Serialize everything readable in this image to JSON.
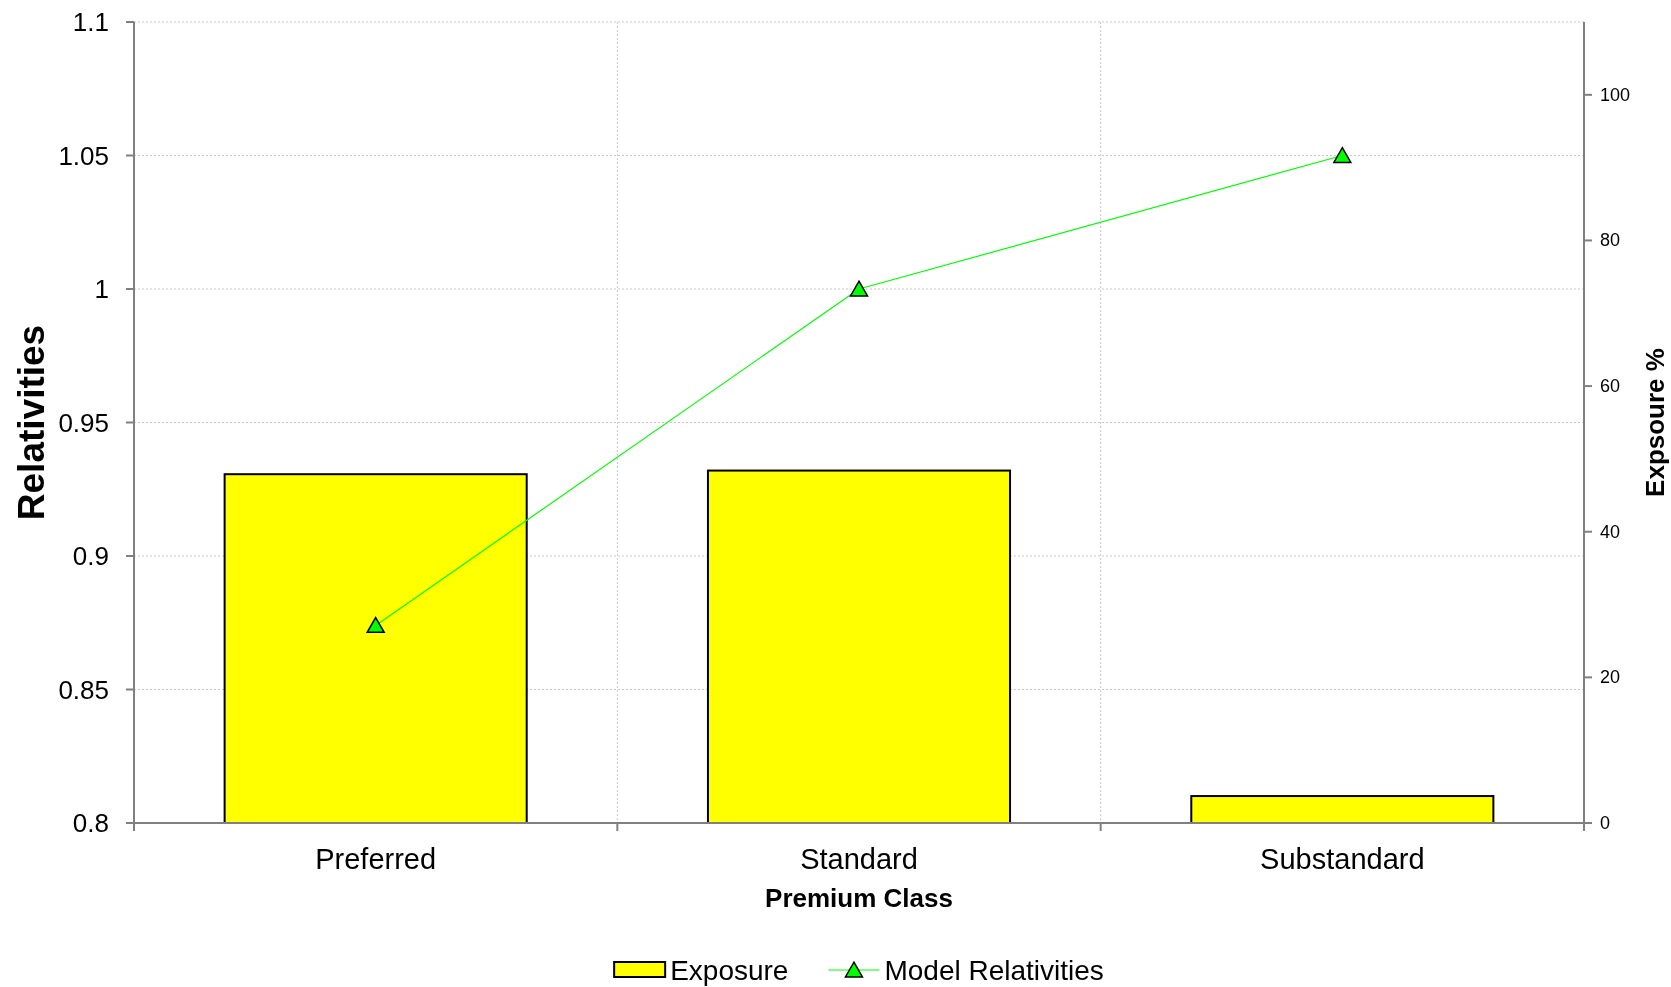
{
  "chart_data": {
    "type": "bar",
    "xlabel": "Premium Class",
    "ylabel": "Relativities",
    "y2label": "Expsoure %",
    "categories": [
      "Preferred",
      "Standard",
      "Substandard"
    ],
    "series": [
      {
        "name": "Exposure",
        "axis": "y2",
        "color": "#ffff00",
        "values": [
          47.9,
          48.4,
          3.7
        ]
      },
      {
        "name": "Model Relativities",
        "type": "line",
        "color": "#00ff00",
        "values": [
          0.874,
          1.0,
          1.05
        ]
      }
    ],
    "ylim": [
      0.8,
      1.1
    ],
    "yticks": [
      0.8,
      0.85,
      0.9,
      0.95,
      1,
      1.05,
      1.1
    ],
    "y2lim": [
      0,
      110
    ],
    "y2ticks": [
      0,
      20,
      40,
      60,
      80,
      100
    ],
    "grid": true,
    "legend": "bottom",
    "marker": "triangle"
  }
}
